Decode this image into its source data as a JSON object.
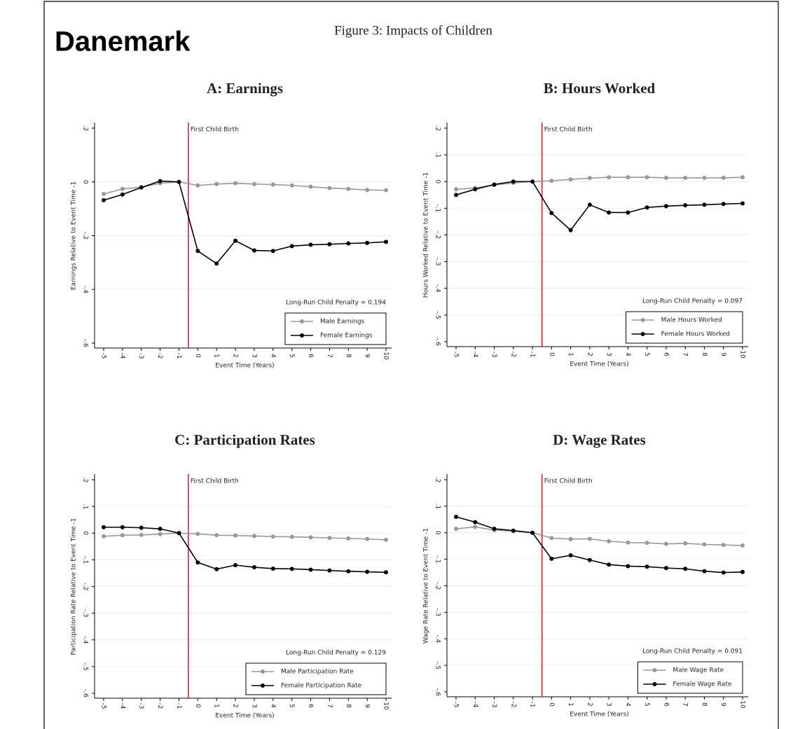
{
  "title": "Danemark",
  "figure_title": "Figure 3: Impacts of Children",
  "chart_data": [
    {
      "type": "line",
      "title": "A: Earnings",
      "x_label": "Event Time (Years)",
      "y_label": "Earnings Relative to Event Time -1",
      "x": [
        -5,
        -4,
        -3,
        -2,
        -1,
        0,
        1,
        2,
        3,
        4,
        5,
        6,
        7,
        8,
        9,
        10
      ],
      "xlim": [
        -5,
        10
      ],
      "xticks": [
        -5,
        -4,
        -3,
        -2,
        -1,
        0,
        1,
        2,
        3,
        4,
        5,
        6,
        7,
        8,
        9,
        10
      ],
      "ylim": [
        -0.6,
        0.2
      ],
      "yticks": [
        {
          "value": 0.2,
          "label": ".2"
        },
        0,
        {
          "value": -0.2,
          "label": "-.2"
        },
        {
          "value": -0.4,
          "label": "-.4"
        },
        {
          "value": -0.6,
          "label": "-.6"
        }
      ],
      "grid": true,
      "legend": "lower right",
      "vline": {
        "x": -0.5,
        "label": "First Child Birth",
        "color": "#c8102e"
      },
      "note": "Long-Run Child Penalty = 0.194",
      "series": [
        {
          "name": "Male Earnings",
          "color": "#999999",
          "values": [
            -0.045,
            -0.026,
            -0.02,
            -0.005,
            0,
            -0.013,
            -0.008,
            -0.005,
            -0.008,
            -0.01,
            -0.013,
            -0.018,
            -0.023,
            -0.026,
            -0.03,
            -0.031
          ]
        },
        {
          "name": "Female Earnings",
          "color": "#000000",
          "values": [
            -0.068,
            -0.047,
            -0.021,
            0.003,
            0,
            -0.257,
            -0.304,
            -0.219,
            -0.255,
            -0.257,
            -0.239,
            -0.234,
            -0.232,
            -0.229,
            -0.227,
            -0.223
          ]
        }
      ]
    },
    {
      "type": "line",
      "title": "B: Hours Worked",
      "x_label": "Event Time (Years)",
      "y_label": "Hours Worked Relative to Event Time -1",
      "x": [
        -5,
        -4,
        -3,
        -2,
        -1,
        0,
        1,
        2,
        3,
        4,
        5,
        6,
        7,
        8,
        9,
        10
      ],
      "xlim": [
        -5,
        10
      ],
      "xticks": [
        -5,
        -4,
        -3,
        -2,
        -1,
        0,
        1,
        2,
        3,
        4,
        5,
        6,
        7,
        8,
        9,
        10
      ],
      "ylim": [
        -0.6,
        0.2
      ],
      "yticks": [
        {
          "value": 0.2,
          "label": ".2"
        },
        {
          "value": 0.1,
          "label": ".1"
        },
        0,
        {
          "value": -0.1,
          "label": "-.1"
        },
        {
          "value": -0.2,
          "label": "-.2"
        },
        {
          "value": -0.3,
          "label": "-.3"
        },
        {
          "value": -0.4,
          "label": "-.4"
        },
        {
          "value": -0.5,
          "label": "-.5"
        },
        {
          "value": -0.6,
          "label": "-.6"
        }
      ],
      "grid": true,
      "legend": "lower right",
      "vline": {
        "x": -0.5,
        "label": "First Child Birth",
        "color": "#c8102e"
      },
      "note": "Long-Run Child Penalty = 0.097",
      "series": [
        {
          "name": "Male Hours Worked",
          "color": "#999999",
          "values": [
            -0.029,
            -0.024,
            -0.013,
            -0.005,
            0,
            0.003,
            0.008,
            0.013,
            0.016,
            0.016,
            0.016,
            0.014,
            0.014,
            0.014,
            0.014,
            0.016
          ]
        },
        {
          "name": "Female Hours Worked",
          "color": "#000000",
          "values": [
            -0.05,
            -0.029,
            -0.011,
            0,
            0,
            -0.118,
            -0.182,
            -0.087,
            -0.116,
            -0.116,
            -0.097,
            -0.092,
            -0.089,
            -0.087,
            -0.084,
            -0.082
          ]
        }
      ]
    },
    {
      "type": "line",
      "title": "C: Participation Rates",
      "x_label": "Event Time (Years)",
      "y_label": "Participation Rate Relative to Event Time -1",
      "x": [
        -5,
        -4,
        -3,
        -2,
        -1,
        0,
        1,
        2,
        3,
        4,
        5,
        6,
        7,
        8,
        9,
        10
      ],
      "xlim": [
        -5,
        10
      ],
      "xticks": [
        -5,
        -4,
        -3,
        -2,
        -1,
        0,
        1,
        2,
        3,
        4,
        5,
        6,
        7,
        8,
        9,
        10
      ],
      "ylim": [
        -0.6,
        0.2
      ],
      "yticks": [
        {
          "value": 0.2,
          "label": ".2"
        },
        {
          "value": 0.1,
          "label": ".1"
        },
        0,
        {
          "value": -0.1,
          "label": "-.1"
        },
        {
          "value": -0.2,
          "label": "-.2"
        },
        {
          "value": -0.3,
          "label": "-.3"
        },
        {
          "value": -0.4,
          "label": "-.4"
        },
        {
          "value": -0.5,
          "label": "-.5"
        },
        {
          "value": -0.6,
          "label": "-.6"
        }
      ],
      "grid": true,
      "legend": "lower right",
      "vline": {
        "x": -0.5,
        "label": "First Child Birth",
        "color": "#c8102e"
      },
      "note": "Long-Run Child Penalty = 0.129",
      "series": [
        {
          "name": "Male Participation Rate",
          "color": "#999999",
          "values": [
            -0.012,
            -0.008,
            -0.007,
            -0.004,
            0,
            -0.003,
            -0.008,
            -0.009,
            -0.011,
            -0.013,
            -0.014,
            -0.016,
            -0.018,
            -0.02,
            -0.022,
            -0.025
          ]
        },
        {
          "name": "Female Participation Rate",
          "color": "#000000",
          "values": [
            0.022,
            0.022,
            0.02,
            0.016,
            0,
            -0.11,
            -0.135,
            -0.12,
            -0.128,
            -0.133,
            -0.134,
            -0.137,
            -0.14,
            -0.143,
            -0.145,
            -0.147
          ]
        }
      ]
    },
    {
      "type": "line",
      "title": "D: Wage Rates",
      "x_label": "Event Time (Years)",
      "y_label": "Wage Rate Relative to Event Time -1",
      "x": [
        -5,
        -4,
        -3,
        -2,
        -1,
        0,
        1,
        2,
        3,
        4,
        5,
        6,
        7,
        8,
        9,
        10
      ],
      "xlim": [
        -5,
        10
      ],
      "xticks": [
        -5,
        -4,
        -3,
        -2,
        -1,
        0,
        1,
        2,
        3,
        4,
        5,
        6,
        7,
        8,
        9,
        10
      ],
      "ylim": [
        -0.6,
        0.2
      ],
      "yticks": [
        {
          "value": 0.2,
          "label": ".2"
        },
        {
          "value": 0.1,
          "label": ".1"
        },
        0,
        {
          "value": -0.1,
          "label": "-.1"
        },
        {
          "value": -0.2,
          "label": "-.2"
        },
        {
          "value": -0.3,
          "label": "-.3"
        },
        {
          "value": -0.4,
          "label": "-.4"
        },
        {
          "value": -0.5,
          "label": "-.5"
        },
        {
          "value": -0.6,
          "label": "-.6"
        }
      ],
      "grid": true,
      "legend": "lower right",
      "vline": {
        "x": -0.5,
        "label": "First Child Birth",
        "color": "#c8102e"
      },
      "note": "Long-Run Child Penalty = 0.091",
      "series": [
        {
          "name": "Male Wage Rate",
          "color": "#999999",
          "values": [
            0.015,
            0.022,
            0.01,
            0.006,
            0,
            -0.02,
            -0.024,
            -0.023,
            -0.032,
            -0.037,
            -0.038,
            -0.042,
            -0.04,
            -0.044,
            -0.046,
            -0.048
          ]
        },
        {
          "name": "Female Wage Rate",
          "color": "#000000",
          "values": [
            0.06,
            0.04,
            0.015,
            0.008,
            0,
            -0.098,
            -0.085,
            -0.103,
            -0.12,
            -0.126,
            -0.128,
            -0.133,
            -0.136,
            -0.145,
            -0.15,
            -0.148
          ]
        }
      ]
    }
  ]
}
